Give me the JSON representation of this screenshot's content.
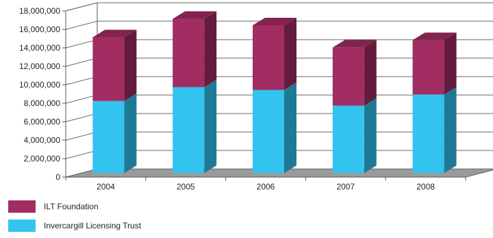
{
  "chart_data": {
    "type": "bar",
    "stacked": true,
    "three_d": true,
    "categories": [
      "2004",
      "2005",
      "2006",
      "2007",
      "2008"
    ],
    "series": [
      {
        "name": "Invercargill Licensing Trust",
        "values": [
          7800000,
          9300000,
          9000000,
          7300000,
          8500000
        ],
        "color": "#33c3ef"
      },
      {
        "name": "ILT Foundation",
        "values": [
          6900000,
          7400000,
          7000000,
          6300000,
          5900000
        ],
        "color": "#a22d63"
      }
    ],
    "ylim": [
      0,
      18000000
    ],
    "yticks": [
      0,
      2000000,
      4000000,
      6000000,
      8000000,
      10000000,
      12000000,
      14000000,
      16000000,
      18000000
    ],
    "ytick_labels": [
      "0",
      "2,000,000",
      "4,000,000",
      "6,000,000",
      "8,000,000",
      "10,000,000",
      "12,000,000",
      "14,000,000",
      "16,000,000",
      "18,000,000"
    ],
    "grid": true,
    "legend_position": "bottom-left",
    "floor_color": "#9a9a9a"
  }
}
